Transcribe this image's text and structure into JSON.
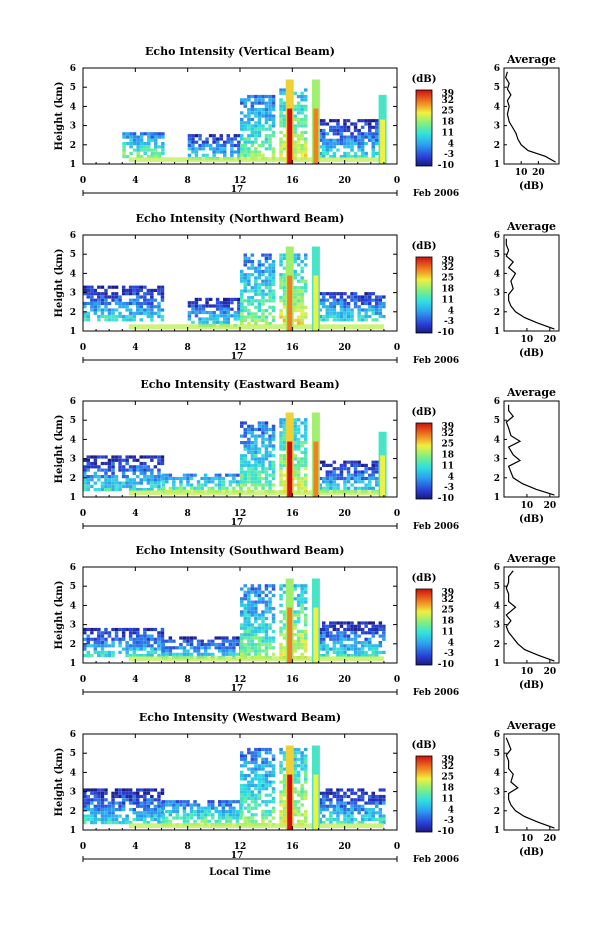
{
  "chart_data": [
    {
      "type": "heatmap",
      "title": "Echo Intensity (Vertical Beam)",
      "ylabel": "Height (km)",
      "x_ticks": [
        "0",
        "4",
        "8",
        "12",
        "16",
        "20",
        "0"
      ],
      "y_ticks": [
        "1",
        "2",
        "3",
        "4",
        "5",
        "6"
      ],
      "xlim": [
        0,
        24
      ],
      "ylim": [
        1,
        6
      ],
      "date_day": "17",
      "date_label": "Feb 2006",
      "colorbar": {
        "unit": "(dB)",
        "ticks": [
          "39",
          "32",
          "25",
          "18",
          "11",
          "4",
          "-3",
          "-10"
        ]
      },
      "echo_layers": [
        {
          "x": [
            3,
            6
          ],
          "y": [
            1.3,
            2.6
          ],
          "value": 18
        },
        {
          "x": [
            8,
            12
          ],
          "y": [
            1.2,
            2.5
          ],
          "value": 11
        },
        {
          "x": [
            12,
            14.5
          ],
          "y": [
            1.2,
            4.5
          ],
          "value": 18
        },
        {
          "x": [
            15,
            17
          ],
          "y": [
            1.2,
            4.8
          ],
          "value": 25
        },
        {
          "x": [
            18,
            23
          ],
          "y": [
            1.3,
            3.2
          ],
          "value": 11
        }
      ],
      "columns": [
        {
          "x": 15.8,
          "ytop": 5.4,
          "value": 39
        },
        {
          "x": 17.8,
          "ytop": 5.4,
          "value": 32
        },
        {
          "x": 22.9,
          "ytop": 4.6,
          "value": 25
        }
      ],
      "profile": {
        "title": "Average",
        "xlabel": "(dB)",
        "x_ticks": [
          "10",
          "20"
        ],
        "xlim": [
          0,
          32
        ],
        "y_ticks": [
          "1",
          "2",
          "3",
          "4",
          "5",
          "6"
        ],
        "ylim": [
          1,
          6
        ],
        "x": [
          30,
          24,
          14,
          10,
          8,
          7,
          5,
          3,
          2,
          3,
          2,
          4,
          2,
          3,
          1,
          2
        ],
        "y": [
          1.1,
          1.4,
          1.7,
          2.0,
          2.3,
          2.6,
          2.9,
          3.2,
          3.6,
          4.0,
          4.3,
          4.6,
          4.9,
          5.2,
          5.5,
          5.8
        ]
      }
    },
    {
      "type": "heatmap",
      "title": "Echo Intensity (Northward Beam)",
      "ylabel": "Height (km)",
      "x_ticks": [
        "0",
        "4",
        "8",
        "12",
        "16",
        "20",
        "0"
      ],
      "y_ticks": [
        "1",
        "2",
        "3",
        "4",
        "5",
        "6"
      ],
      "xlim": [
        0,
        24
      ],
      "ylim": [
        1,
        6
      ],
      "date_day": "17",
      "date_label": "Feb 2006",
      "colorbar": {
        "unit": "(dB)",
        "ticks": [
          "39",
          "32",
          "25",
          "18",
          "11",
          "4",
          "-3",
          "-10"
        ]
      },
      "echo_layers": [
        {
          "x": [
            0,
            6
          ],
          "y": [
            1.5,
            3.2
          ],
          "value": 11
        },
        {
          "x": [
            8,
            12
          ],
          "y": [
            1.2,
            2.6
          ],
          "value": 11
        },
        {
          "x": [
            12,
            14.5
          ],
          "y": [
            1.3,
            5.0
          ],
          "value": 18
        },
        {
          "x": [
            15,
            17
          ],
          "y": [
            1.3,
            5.0
          ],
          "value": 25
        },
        {
          "x": [
            18,
            23
          ],
          "y": [
            1.5,
            3.0
          ],
          "value": 11
        }
      ],
      "columns": [
        {
          "x": 15.8,
          "ytop": 5.4,
          "value": 32
        },
        {
          "x": 17.8,
          "ytop": 5.4,
          "value": 25
        }
      ],
      "profile": {
        "title": "Average",
        "xlabel": "(dB)",
        "x_ticks": [
          "10",
          "20"
        ],
        "xlim": [
          0,
          24
        ],
        "y_ticks": [
          "1",
          "2",
          "3",
          "4",
          "5",
          "6"
        ],
        "ylim": [
          1,
          6
        ],
        "x": [
          22,
          15,
          9,
          5,
          3,
          2,
          2,
          4,
          3,
          5,
          2,
          4,
          1,
          2,
          1,
          1
        ],
        "y": [
          1.1,
          1.4,
          1.7,
          2.0,
          2.3,
          2.6,
          2.9,
          3.2,
          3.6,
          4.0,
          4.3,
          4.6,
          4.9,
          5.2,
          5.5,
          5.8
        ]
      }
    },
    {
      "type": "heatmap",
      "title": "Echo Intensity (Eastward Beam)",
      "ylabel": "Height (km)",
      "x_ticks": [
        "0",
        "4",
        "8",
        "12",
        "16",
        "20",
        "0"
      ],
      "y_ticks": [
        "1",
        "2",
        "3",
        "4",
        "5",
        "6"
      ],
      "xlim": [
        0,
        24
      ],
      "ylim": [
        1,
        6
      ],
      "date_day": "17",
      "date_label": "Feb 2006",
      "colorbar": {
        "unit": "(dB)",
        "ticks": [
          "39",
          "32",
          "25",
          "18",
          "11",
          "4",
          "-3",
          "-10"
        ]
      },
      "echo_layers": [
        {
          "x": [
            0,
            6
          ],
          "y": [
            1.3,
            3.0
          ],
          "value": 11
        },
        {
          "x": [
            6,
            12
          ],
          "y": [
            1.2,
            2.2
          ],
          "value": 18
        },
        {
          "x": [
            12,
            14.5
          ],
          "y": [
            1.2,
            4.8
          ],
          "value": 18
        },
        {
          "x": [
            15,
            17
          ],
          "y": [
            1.2,
            5.0
          ],
          "value": 25
        },
        {
          "x": [
            18,
            23
          ],
          "y": [
            1.2,
            2.8
          ],
          "value": 11
        }
      ],
      "columns": [
        {
          "x": 15.8,
          "ytop": 5.4,
          "value": 39
        },
        {
          "x": 17.8,
          "ytop": 5.4,
          "value": 32
        },
        {
          "x": 22.9,
          "ytop": 4.4,
          "value": 25
        }
      ],
      "profile": {
        "title": "Average",
        "xlabel": "(dB)",
        "x_ticks": [
          "10",
          "20"
        ],
        "xlim": [
          0,
          24
        ],
        "y_ticks": [
          "1",
          "2",
          "3",
          "4",
          "5",
          "6"
        ],
        "ylim": [
          1,
          6
        ],
        "x": [
          22,
          14,
          8,
          4,
          3,
          2,
          7,
          4,
          2,
          7,
          3,
          2,
          1,
          4,
          2,
          2
        ],
        "y": [
          1.1,
          1.4,
          1.7,
          2.0,
          2.3,
          2.6,
          2.9,
          3.2,
          3.6,
          3.9,
          4.2,
          4.6,
          4.9,
          5.2,
          5.5,
          5.8
        ]
      }
    },
    {
      "type": "heatmap",
      "title": "Echo Intensity (Southward Beam)",
      "ylabel": "Height (km)",
      "x_ticks": [
        "0",
        "4",
        "8",
        "12",
        "16",
        "20",
        "0"
      ],
      "y_ticks": [
        "1",
        "2",
        "3",
        "4",
        "5",
        "6"
      ],
      "xlim": [
        0,
        24
      ],
      "ylim": [
        1,
        6
      ],
      "date_day": "17",
      "date_label": "Feb 2006",
      "colorbar": {
        "unit": "(dB)",
        "ticks": [
          "39",
          "32",
          "25",
          "18",
          "11",
          "4",
          "-3",
          "-10"
        ]
      },
      "echo_layers": [
        {
          "x": [
            0,
            6
          ],
          "y": [
            1.3,
            2.8
          ],
          "value": 11
        },
        {
          "x": [
            6,
            12
          ],
          "y": [
            1.2,
            2.3
          ],
          "value": 11
        },
        {
          "x": [
            12,
            14.5
          ],
          "y": [
            1.2,
            5.0
          ],
          "value": 18
        },
        {
          "x": [
            15,
            17
          ],
          "y": [
            1.2,
            5.0
          ],
          "value": 25
        },
        {
          "x": [
            18,
            23
          ],
          "y": [
            1.3,
            3.0
          ],
          "value": 11
        }
      ],
      "columns": [
        {
          "x": 15.8,
          "ytop": 5.4,
          "value": 32
        },
        {
          "x": 17.8,
          "ytop": 5.4,
          "value": 25
        }
      ],
      "profile": {
        "title": "Average",
        "xlabel": "(dB)",
        "x_ticks": [
          "10",
          "20"
        ],
        "xlim": [
          0,
          24
        ],
        "y_ticks": [
          "1",
          "2",
          "3",
          "4",
          "5",
          "6"
        ],
        "ylim": [
          1,
          6
        ],
        "x": [
          22,
          15,
          9,
          6,
          4,
          2,
          1,
          3,
          1,
          5,
          2,
          2,
          1,
          2,
          2,
          4
        ],
        "y": [
          1.1,
          1.4,
          1.7,
          2.0,
          2.3,
          2.6,
          2.9,
          3.2,
          3.5,
          3.9,
          4.2,
          4.6,
          4.9,
          5.2,
          5.5,
          5.8
        ]
      }
    },
    {
      "type": "heatmap",
      "title": "Echo Intensity (Westward Beam)",
      "ylabel": "Height (km)",
      "xlabel": "Local Time",
      "x_ticks": [
        "0",
        "4",
        "8",
        "12",
        "16",
        "20",
        "0"
      ],
      "y_ticks": [
        "1",
        "2",
        "3",
        "4",
        "5",
        "6"
      ],
      "xlim": [
        0,
        24
      ],
      "ylim": [
        1,
        6
      ],
      "date_day": "17",
      "date_label": "Feb 2006",
      "colorbar": {
        "unit": "(dB)",
        "ticks": [
          "39",
          "32",
          "25",
          "18",
          "11",
          "4",
          "-3",
          "-10"
        ]
      },
      "echo_layers": [
        {
          "x": [
            0,
            6
          ],
          "y": [
            1.3,
            3.0
          ],
          "value": 11
        },
        {
          "x": [
            6,
            12
          ],
          "y": [
            1.2,
            2.4
          ],
          "value": 18
        },
        {
          "x": [
            12,
            14.5
          ],
          "y": [
            1.2,
            5.2
          ],
          "value": 18
        },
        {
          "x": [
            15,
            17
          ],
          "y": [
            1.2,
            5.2
          ],
          "value": 25
        },
        {
          "x": [
            18,
            23
          ],
          "y": [
            1.3,
            3.0
          ],
          "value": 11
        }
      ],
      "columns": [
        {
          "x": 15.8,
          "ytop": 5.4,
          "value": 39
        },
        {
          "x": 17.8,
          "ytop": 5.4,
          "value": 25
        }
      ],
      "profile": {
        "title": "Average",
        "xlabel": "(dB)",
        "x_ticks": [
          "10",
          "20"
        ],
        "xlim": [
          0,
          24
        ],
        "y_ticks": [
          "1",
          "2",
          "3",
          "4",
          "5",
          "6"
        ],
        "ylim": [
          1,
          6
        ],
        "x": [
          22,
          15,
          9,
          5,
          3,
          2,
          2,
          6,
          3,
          4,
          2,
          2,
          1,
          3,
          2,
          1
        ],
        "y": [
          1.1,
          1.4,
          1.7,
          2.0,
          2.3,
          2.6,
          2.9,
          3.2,
          3.5,
          3.9,
          4.2,
          4.6,
          4.9,
          5.2,
          5.5,
          5.8
        ]
      }
    }
  ]
}
